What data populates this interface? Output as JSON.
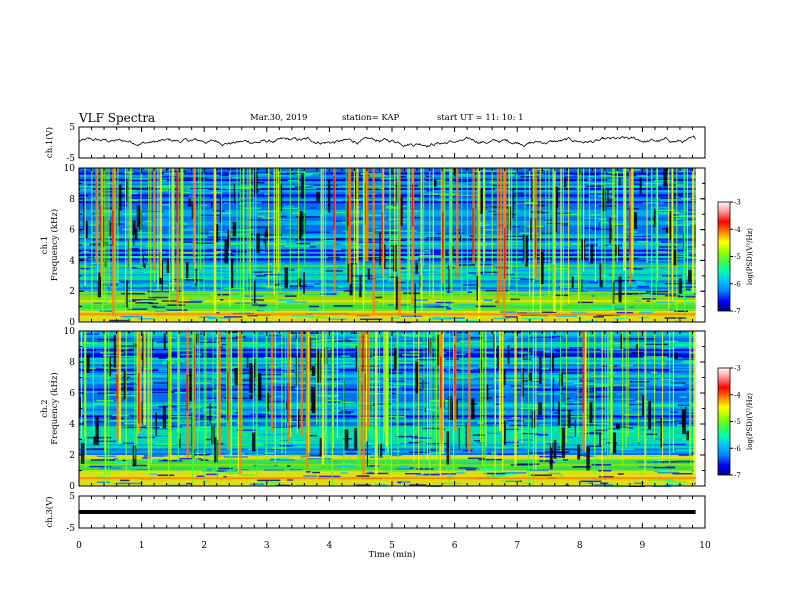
{
  "header": {
    "title": "VLF Spectra",
    "date": "Mar.30, 2019",
    "station": "station= KAP",
    "start": "start  UT  =   11: 10: 1"
  },
  "colors": {
    "ink": "#000000",
    "colormap": [
      "#000080",
      "#0000ff",
      "#0080ff",
      "#00c0ff",
      "#00ffb0",
      "#40ff40",
      "#a0ff00",
      "#ffff00",
      "#ff8000",
      "#ff0000",
      "#ff9090",
      "#ffffff"
    ]
  },
  "chart_data": [
    {
      "type": "line",
      "title": "",
      "ylabel": "ch.1(V)",
      "xlim": [
        0,
        10
      ],
      "ylim": [
        -5,
        5
      ],
      "yticks": [
        "5",
        "-5"
      ],
      "data_extent_min": [
        0,
        9.85
      ],
      "description_values": {
        "approx_mean": 0.2,
        "approx_range": [
          -1.5,
          2.0
        ]
      }
    },
    {
      "type": "heatmap",
      "ylabel": "ch.1\nFrequency (kHz)",
      "xlim": [
        0,
        10
      ],
      "ylim": [
        0,
        10
      ],
      "yticks": [
        "0",
        "2",
        "4",
        "6",
        "8",
        "10"
      ],
      "colorbar": {
        "label": "log(PSD)(V²/Hz)",
        "range": [
          -7,
          -3
        ],
        "ticks": [
          "-3",
          "-4",
          "-5",
          "-6",
          "-7"
        ]
      }
    },
    {
      "type": "heatmap",
      "ylabel": "ch.2\nFrequency (kHz)",
      "xlim": [
        0,
        10
      ],
      "ylim": [
        0,
        10
      ],
      "yticks": [
        "0",
        "2",
        "4",
        "6",
        "8",
        "10"
      ],
      "colorbar": {
        "label": "log(PSD)(V²/Hz)",
        "range": [
          -7,
          -3
        ],
        "ticks": [
          "-3",
          "-4",
          "-5",
          "-6",
          "-7"
        ]
      }
    },
    {
      "type": "line",
      "ylabel": "ch.3(V)",
      "xlim": [
        0,
        10
      ],
      "ylim": [
        -5,
        5
      ],
      "yticks": [
        "5",
        "-5"
      ],
      "values_constant": 0,
      "x": [
        0,
        9.85
      ]
    }
  ],
  "xaxis": {
    "label": "Time  (min)",
    "ticks": [
      "0",
      "1",
      "2",
      "3",
      "4",
      "5",
      "6",
      "7",
      "8",
      "9",
      "10"
    ]
  }
}
